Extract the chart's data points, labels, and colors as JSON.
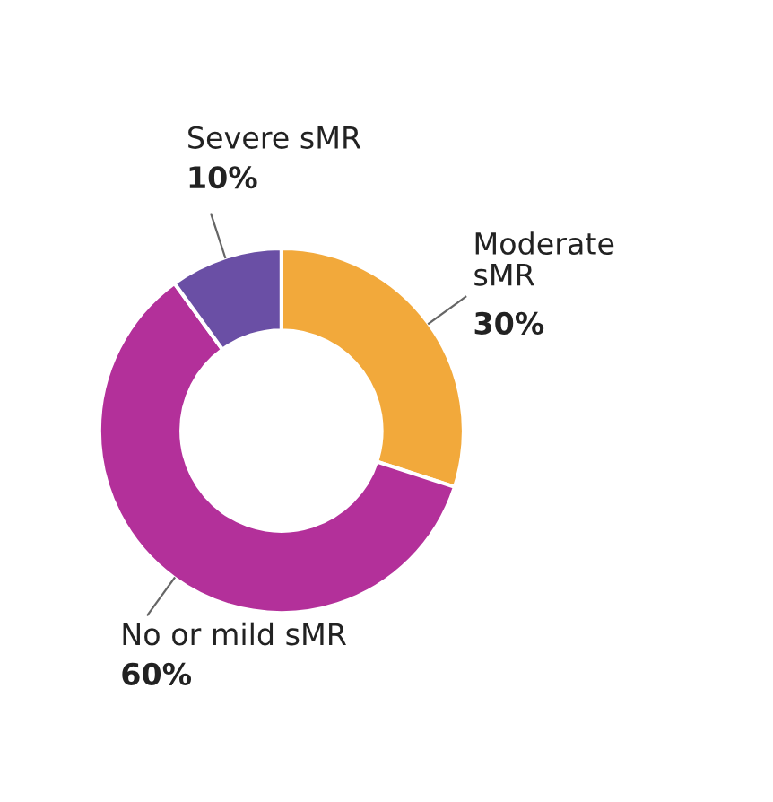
{
  "chart_data": {
    "type": "donut",
    "categories": [
      "Moderate\nsMR",
      "No or mild sMR",
      "Severe sMR"
    ],
    "values": [
      30,
      60,
      10
    ],
    "value_labels": [
      "30%",
      "60%",
      "10%"
    ],
    "colors": [
      "#f2a93b",
      "#b3309a",
      "#6a4fa5"
    ]
  }
}
